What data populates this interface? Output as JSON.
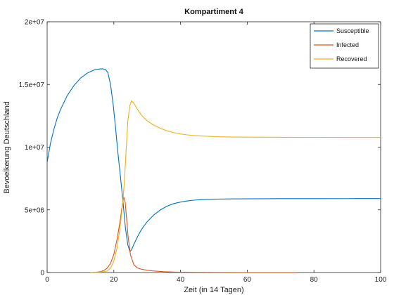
{
  "chart_data": {
    "type": "line",
    "title": "Kompartiment 4",
    "xlabel": "Zeit (in 14 Tagen)",
    "ylabel": "Bevoelkerung Deutschland",
    "xlim": [
      0,
      100
    ],
    "ylim": [
      0,
      20000000
    ],
    "x_ticks": [
      0,
      20,
      40,
      60,
      80,
      100
    ],
    "y_ticks": [
      0,
      5000000,
      10000000,
      15000000,
      20000000
    ],
    "x_tick_labels": [
      "0",
      "20",
      "40",
      "60",
      "80",
      "100"
    ],
    "y_tick_labels": [
      "0",
      "5e+06",
      "1e+07",
      "1.5e+07",
      "2e+07"
    ],
    "grid": false,
    "legend_position": "top-right",
    "series": [
      {
        "name": "Susceptible",
        "color": "#0072bd",
        "points": [
          [
            0,
            8800000
          ],
          [
            1,
            10300000
          ],
          [
            2,
            11400000
          ],
          [
            3,
            12300000
          ],
          [
            4,
            13000000
          ],
          [
            6,
            14100000
          ],
          [
            8,
            14900000
          ],
          [
            10,
            15500000
          ],
          [
            12,
            15900000
          ],
          [
            14,
            16150000
          ],
          [
            15.5,
            16230000
          ],
          [
            16.5,
            16250000
          ],
          [
            17.5,
            16200000
          ],
          [
            18.2,
            15950000
          ],
          [
            19,
            15000000
          ],
          [
            19.8,
            13400000
          ],
          [
            20.5,
            11600000
          ],
          [
            21.2,
            9600000
          ],
          [
            22,
            7600000
          ],
          [
            22.8,
            5500000
          ],
          [
            23.5,
            3500000
          ],
          [
            24.2,
            2200000
          ],
          [
            24.8,
            1680000
          ],
          [
            25.3,
            1800000
          ],
          [
            26,
            2250000
          ],
          [
            27,
            2800000
          ],
          [
            28,
            3300000
          ],
          [
            29,
            3700000
          ],
          [
            30,
            4050000
          ],
          [
            32,
            4600000
          ],
          [
            34,
            5000000
          ],
          [
            36,
            5300000
          ],
          [
            38,
            5500000
          ],
          [
            40,
            5620000
          ],
          [
            42,
            5710000
          ],
          [
            44,
            5770000
          ],
          [
            46,
            5810000
          ],
          [
            50,
            5850000
          ],
          [
            55,
            5870000
          ],
          [
            60,
            5880000
          ],
          [
            70,
            5890000
          ],
          [
            80,
            5895000
          ],
          [
            90,
            5897000
          ],
          [
            100,
            5900000
          ]
        ]
      },
      {
        "name": "Infected",
        "color": "#d95319",
        "points": [
          [
            13,
            10000
          ],
          [
            15,
            30000
          ],
          [
            16,
            70000
          ],
          [
            17,
            160000
          ],
          [
            18,
            350000
          ],
          [
            19,
            720000
          ],
          [
            20,
            1450000
          ],
          [
            21,
            2700000
          ],
          [
            22,
            4300000
          ],
          [
            22.6,
            5500000
          ],
          [
            23,
            6000000
          ],
          [
            23.4,
            5600000
          ],
          [
            23.8,
            4400000
          ],
          [
            24.3,
            2800000
          ],
          [
            25,
            1400000
          ],
          [
            26,
            620000
          ],
          [
            27,
            380000
          ],
          [
            28,
            280000
          ],
          [
            30,
            180000
          ],
          [
            32,
            120000
          ],
          [
            35,
            70000
          ],
          [
            38,
            40000
          ],
          [
            40,
            25000
          ],
          [
            45,
            15000
          ],
          [
            50,
            10000
          ],
          [
            60,
            6000
          ],
          [
            75,
            3000
          ]
        ]
      },
      {
        "name": "Recovered",
        "color": "#edb120",
        "points": [
          [
            13,
            0
          ],
          [
            16,
            20000
          ],
          [
            18,
            120000
          ],
          [
            19,
            350000
          ],
          [
            20,
            900000
          ],
          [
            21,
            2000000
          ],
          [
            22,
            3900000
          ],
          [
            22.7,
            5600000
          ],
          [
            23.2,
            7400000
          ],
          [
            23.7,
            9800000
          ],
          [
            24.2,
            12100000
          ],
          [
            24.8,
            13300000
          ],
          [
            25.3,
            13700000
          ],
          [
            26,
            13500000
          ],
          [
            27,
            13050000
          ],
          [
            28,
            12650000
          ],
          [
            29,
            12350000
          ],
          [
            30,
            12100000
          ],
          [
            32,
            11750000
          ],
          [
            34,
            11500000
          ],
          [
            36,
            11300000
          ],
          [
            38,
            11150000
          ],
          [
            40,
            11050000
          ],
          [
            42,
            10980000
          ],
          [
            44,
            10930000
          ],
          [
            46,
            10890000
          ],
          [
            50,
            10840000
          ],
          [
            55,
            10810000
          ],
          [
            60,
            10800000
          ],
          [
            70,
            10790000
          ],
          [
            80,
            10785000
          ],
          [
            90,
            10782000
          ],
          [
            100,
            10780000
          ]
        ]
      }
    ]
  }
}
